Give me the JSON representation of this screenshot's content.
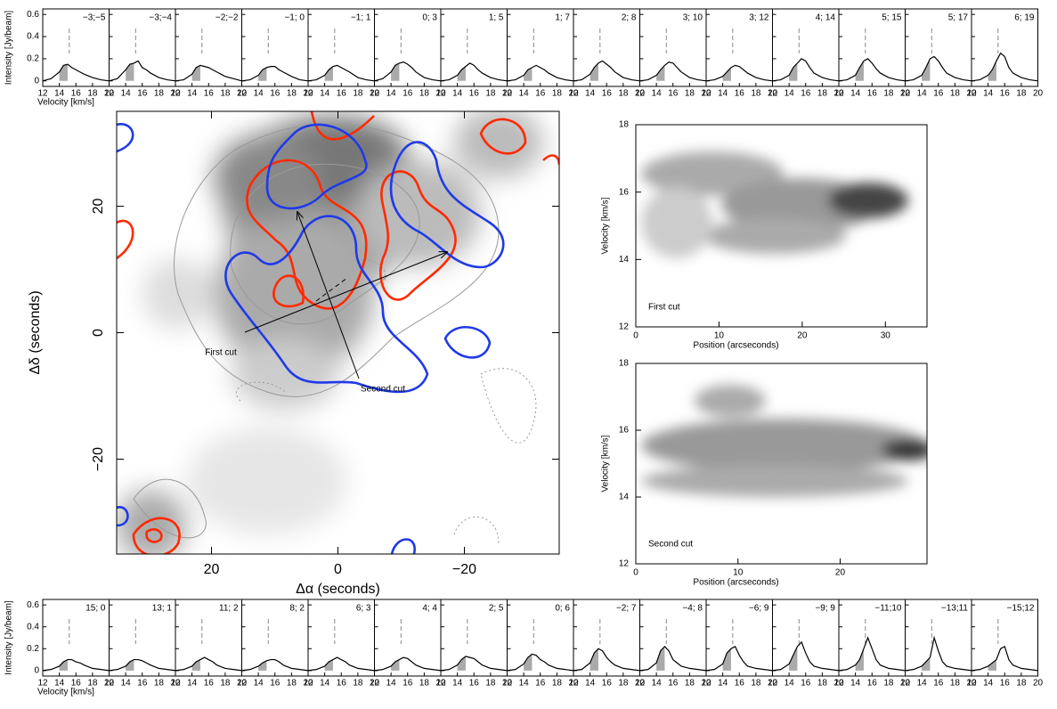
{
  "spectrum_axes": {
    "xlabel": "Velocity [km/s]",
    "ylabel": "Intensity [Jy/beam]",
    "xlim": [
      12,
      20
    ],
    "xticks": [
      12,
      14,
      16,
      18,
      20
    ],
    "ylim": [
      -0.05,
      0.65
    ],
    "yticks": [
      0,
      0.2,
      0.4,
      0.6
    ],
    "reference_velocity": 15.2,
    "shaded_range": [
      14,
      15
    ],
    "color": "#000000",
    "shade_color": "#aaaaaa",
    "x": [
      12,
      13,
      14,
      14.5,
      15,
      15.5,
      16,
      16.5,
      17,
      18,
      19,
      20
    ]
  },
  "chart_data": [
    {
      "type": "spectrum",
      "title": "−3;−5",
      "values": [
        0,
        0.02,
        0.08,
        0.14,
        0.15,
        0.12,
        0.1,
        0.08,
        0.06,
        0.03,
        0.01,
        0
      ]
    },
    {
      "type": "spectrum",
      "title": "−3;−4",
      "values": [
        0,
        0.02,
        0.1,
        0.15,
        0.16,
        0.18,
        0.12,
        0.1,
        0.07,
        0.03,
        0.01,
        0
      ]
    },
    {
      "type": "spectrum",
      "title": "−2;−2",
      "values": [
        0,
        0.01,
        0.06,
        0.12,
        0.14,
        0.13,
        0.12,
        0.1,
        0.08,
        0.04,
        0.02,
        0
      ]
    },
    {
      "type": "spectrum",
      "title": "−1; 0",
      "values": [
        0,
        0.01,
        0.05,
        0.1,
        0.12,
        0.13,
        0.13,
        0.1,
        0.08,
        0.04,
        0.01,
        0
      ]
    },
    {
      "type": "spectrum",
      "title": "−1; 1",
      "values": [
        0,
        0.01,
        0.05,
        0.1,
        0.13,
        0.14,
        0.12,
        0.1,
        0.08,
        0.03,
        0.01,
        0
      ]
    },
    {
      "type": "spectrum",
      "title": "0; 3",
      "values": [
        0,
        0.02,
        0.08,
        0.14,
        0.16,
        0.17,
        0.15,
        0.12,
        0.08,
        0.03,
        0.01,
        0
      ]
    },
    {
      "type": "spectrum",
      "title": "1; 5",
      "values": [
        0,
        0.01,
        0.05,
        0.1,
        0.13,
        0.16,
        0.14,
        0.1,
        0.07,
        0.03,
        0.01,
        0
      ]
    },
    {
      "type": "spectrum",
      "title": "1; 7",
      "values": [
        0,
        0.01,
        0.05,
        0.1,
        0.12,
        0.14,
        0.12,
        0.1,
        0.07,
        0.03,
        0.01,
        0
      ]
    },
    {
      "type": "spectrum",
      "title": "2; 8",
      "values": [
        0,
        0.01,
        0.06,
        0.12,
        0.16,
        0.18,
        0.15,
        0.12,
        0.08,
        0.03,
        0.01,
        0
      ]
    },
    {
      "type": "spectrum",
      "title": "3; 10",
      "values": [
        0,
        0.01,
        0.05,
        0.1,
        0.14,
        0.17,
        0.16,
        0.12,
        0.08,
        0.03,
        0.01,
        0
      ]
    },
    {
      "type": "spectrum",
      "title": "3; 12",
      "values": [
        0,
        0.01,
        0.04,
        0.08,
        0.12,
        0.14,
        0.13,
        0.1,
        0.07,
        0.03,
        0.01,
        0
      ]
    },
    {
      "type": "spectrum",
      "title": "4; 14",
      "values": [
        0,
        0.01,
        0.05,
        0.12,
        0.16,
        0.2,
        0.18,
        0.12,
        0.07,
        0.03,
        0.01,
        0
      ]
    },
    {
      "type": "spectrum",
      "title": "5; 15",
      "values": [
        0,
        0.01,
        0.05,
        0.12,
        0.18,
        0.2,
        0.16,
        0.11,
        0.07,
        0.03,
        0.01,
        0
      ]
    },
    {
      "type": "spectrum",
      "title": "5; 17",
      "values": [
        0,
        0.01,
        0.05,
        0.12,
        0.2,
        0.22,
        0.18,
        0.12,
        0.07,
        0.03,
        0.01,
        0
      ]
    },
    {
      "type": "spectrum",
      "title": "6; 19",
      "values": [
        0,
        0.01,
        0.05,
        0.1,
        0.18,
        0.25,
        0.22,
        0.12,
        0.07,
        0.03,
        0.01,
        0
      ]
    },
    {
      "type": "spectrum",
      "title": "15; 0",
      "values": [
        0,
        0.01,
        0.04,
        0.08,
        0.1,
        0.1,
        0.08,
        0.07,
        0.05,
        0.02,
        0.01,
        0
      ]
    },
    {
      "type": "spectrum",
      "title": "13; 1",
      "values": [
        0,
        0.01,
        0.04,
        0.08,
        0.1,
        0.1,
        0.09,
        0.07,
        0.05,
        0.02,
        0.01,
        0
      ]
    },
    {
      "type": "spectrum",
      "title": "11; 2",
      "values": [
        0,
        0.01,
        0.04,
        0.08,
        0.1,
        0.12,
        0.1,
        0.08,
        0.05,
        0.02,
        0.01,
        0
      ]
    },
    {
      "type": "spectrum",
      "title": "8; 2",
      "values": [
        0,
        0.01,
        0.04,
        0.07,
        0.09,
        0.1,
        0.1,
        0.08,
        0.05,
        0.02,
        0.01,
        0
      ]
    },
    {
      "type": "spectrum",
      "title": "6; 3",
      "values": [
        0,
        0.01,
        0.04,
        0.08,
        0.1,
        0.12,
        0.1,
        0.08,
        0.05,
        0.02,
        0.01,
        0
      ]
    },
    {
      "type": "spectrum",
      "title": "4; 4",
      "values": [
        0,
        0.01,
        0.04,
        0.08,
        0.1,
        0.12,
        0.11,
        0.08,
        0.05,
        0.02,
        0.01,
        0
      ]
    },
    {
      "type": "spectrum",
      "title": "2; 5",
      "values": [
        0,
        0.01,
        0.05,
        0.1,
        0.13,
        0.12,
        0.11,
        0.08,
        0.05,
        0.02,
        0.01,
        0
      ]
    },
    {
      "type": "spectrum",
      "title": "0; 6",
      "values": [
        0,
        0.01,
        0.06,
        0.12,
        0.15,
        0.14,
        0.1,
        0.08,
        0.05,
        0.02,
        0.01,
        0
      ]
    },
    {
      "type": "spectrum",
      "title": "−2; 7",
      "values": [
        0,
        0.01,
        0.07,
        0.16,
        0.2,
        0.18,
        0.12,
        0.08,
        0.05,
        0.02,
        0.01,
        0
      ]
    },
    {
      "type": "spectrum",
      "title": "−4; 8",
      "values": [
        0,
        0.01,
        0.07,
        0.18,
        0.22,
        0.18,
        0.1,
        0.07,
        0.04,
        0.02,
        0.01,
        0
      ]
    },
    {
      "type": "spectrum",
      "title": "−6; 9",
      "values": [
        0,
        0.01,
        0.06,
        0.16,
        0.2,
        0.22,
        0.14,
        0.08,
        0.04,
        0.02,
        0.01,
        0
      ]
    },
    {
      "type": "spectrum",
      "title": "−9; 9",
      "values": [
        0,
        0.01,
        0.06,
        0.14,
        0.22,
        0.26,
        0.16,
        0.08,
        0.04,
        0.02,
        0.01,
        0
      ]
    },
    {
      "type": "spectrum",
      "title": "−11;10",
      "values": [
        0,
        0.01,
        0.05,
        0.1,
        0.2,
        0.3,
        0.2,
        0.1,
        0.05,
        0.02,
        0.01,
        0
      ]
    },
    {
      "type": "spectrum",
      "title": "−13;11",
      "values": [
        0,
        0.01,
        0.04,
        0.08,
        0.12,
        0.3,
        0.18,
        0.08,
        0.04,
        0.02,
        0.01,
        0
      ]
    },
    {
      "type": "spectrum",
      "title": "−15;12",
      "values": [
        0,
        0.01,
        0.04,
        0.07,
        0.1,
        0.2,
        0.22,
        0.1,
        0.05,
        0.02,
        0.01,
        0
      ]
    },
    {
      "type": "map",
      "xlabel": "Δα (seconds)",
      "ylabel": "Δδ (seconds)",
      "xlim": [
        35,
        -35
      ],
      "ylim": [
        -35,
        35
      ],
      "xticks": [
        20,
        0,
        {
          "value": -20,
          "label": "−20"
        }
      ],
      "yticks": [
        {
          "value": -20,
          "label": "−20"
        },
        0,
        20
      ],
      "annotations": [
        "First cut",
        "Second cut"
      ]
    },
    {
      "type": "pv",
      "label": "First cut",
      "xlabel": "Position (arcseconds)",
      "ylabel": "Velocity [km/s]",
      "xlim": [
        0,
        35
      ],
      "xticks": [
        0,
        10,
        20,
        30
      ],
      "ylim": [
        12,
        18
      ],
      "yticks": [
        12,
        14,
        16,
        18
      ]
    },
    {
      "type": "pv",
      "label": "Second cut",
      "xlabel": "Position (arcseconds)",
      "ylabel": "Velocity [km/s]",
      "xlim": [
        0,
        28.5
      ],
      "xticks": [
        0,
        10,
        20
      ],
      "ylim": [
        12,
        18
      ],
      "yticks": [
        12,
        14,
        16,
        18
      ]
    }
  ]
}
